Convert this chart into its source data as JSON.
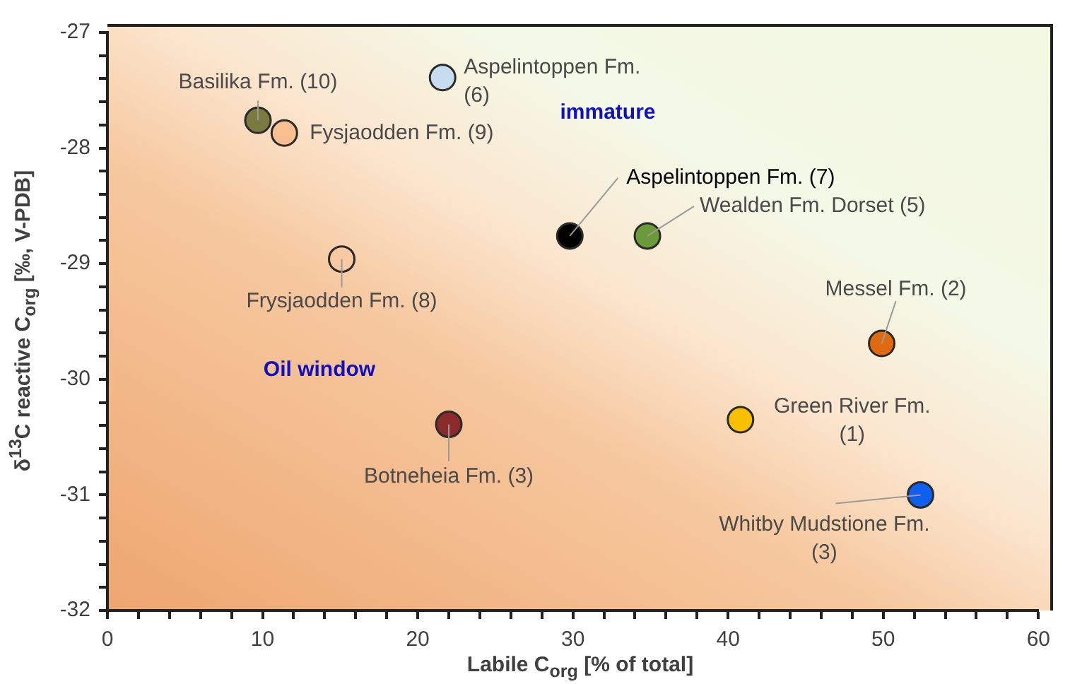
{
  "chart_data": {
    "type": "scatter",
    "xlabel": "Labile C$_{org}$ [% of total]",
    "ylabel": "δ$^{13}$C reactive C$_{org}$ [‰, V-PDB]",
    "xlim": [
      0,
      60
    ],
    "ylim": [
      -32,
      -27
    ],
    "xticks": [
      0,
      {
        "value": 2,
        "label": null
      },
      {
        "value": 4,
        "label": null
      },
      {
        "value": 6,
        "label": null
      },
      {
        "value": 8,
        "label": null
      },
      10,
      {
        "value": 12,
        "label": null
      },
      {
        "value": 14,
        "label": null
      },
      {
        "value": 16,
        "label": null
      },
      {
        "value": 18,
        "label": null
      },
      20,
      {
        "value": 22,
        "label": null
      },
      {
        "value": 24,
        "label": null
      },
      {
        "value": 26,
        "label": null
      },
      {
        "value": 28,
        "label": null
      },
      30,
      {
        "value": 32,
        "label": null
      },
      {
        "value": 34,
        "label": null
      },
      {
        "value": 36,
        "label": null
      },
      {
        "value": 38,
        "label": null
      },
      40,
      {
        "value": 42,
        "label": null
      },
      {
        "value": 44,
        "label": null
      },
      {
        "value": 46,
        "label": null
      },
      {
        "value": 48,
        "label": null
      },
      50,
      {
        "value": 52,
        "label": null
      },
      {
        "value": 54,
        "label": null
      },
      {
        "value": 56,
        "label": null
      },
      {
        "value": 58,
        "label": null
      },
      60
    ],
    "yticks": [
      -32,
      {
        "value": -31.8,
        "label": null
      },
      {
        "value": -31.6,
        "label": null
      },
      {
        "value": -31.4,
        "label": null
      },
      {
        "value": -31.2,
        "label": null
      },
      -31,
      {
        "value": -30.8,
        "label": null
      },
      {
        "value": -30.6,
        "label": null
      },
      {
        "value": -30.4,
        "label": null
      },
      {
        "value": -30.2,
        "label": null
      },
      -30,
      {
        "value": -29.8,
        "label": null
      },
      {
        "value": -29.6,
        "label": null
      },
      {
        "value": -29.4,
        "label": null
      },
      {
        "value": -29.2,
        "label": null
      },
      -29,
      {
        "value": -28.8,
        "label": null
      },
      {
        "value": -28.6,
        "label": null
      },
      {
        "value": -28.4,
        "label": null
      },
      {
        "value": -28.2,
        "label": null
      },
      -28,
      {
        "value": -27.8,
        "label": null
      },
      {
        "value": -27.6,
        "label": null
      },
      {
        "value": -27.4,
        "label": null
      },
      {
        "value": -27.2,
        "label": null
      },
      -27
    ],
    "grid": false,
    "legend": false,
    "marker": "circle",
    "series": [
      {
        "name": "Basilika Fm. (10)",
        "color": "#7a7a40",
        "x": [
          9.7
        ],
        "values": [
          -27.76
        ]
      },
      {
        "name": "Fysjaodden Fm. (9)",
        "color": "#f8c090",
        "x": [
          11.4
        ],
        "values": [
          -27.87
        ]
      },
      {
        "name": "Aspelintoppen Fm. (6)",
        "color": "#c8dcf0",
        "x": [
          21.6
        ],
        "values": [
          -27.39
        ]
      },
      {
        "name": "Frysjaodden Fm. (8)",
        "color": "#f8c8a0",
        "x": [
          15.1
        ],
        "values": [
          -28.96
        ]
      },
      {
        "name": "Botneheia Fm. (3)",
        "color": "#8b2a2a",
        "x": [
          22.0
        ],
        "values": [
          -30.39
        ]
      },
      {
        "name": "Aspelintoppen Fm. (7)",
        "color": "#000000",
        "x": [
          29.8
        ],
        "values": [
          -28.76
        ]
      },
      {
        "name": "Wealden Fm. Dorset (5)",
        "color": "#6a9a3a",
        "x": [
          34.8
        ],
        "values": [
          -28.76
        ]
      },
      {
        "name": "Messel Fm. (2)",
        "color": "#e06a10",
        "x": [
          49.9
        ],
        "values": [
          -29.69
        ]
      },
      {
        "name": "Green River Fm. (1)",
        "color": "#f8c000",
        "x": [
          40.8
        ],
        "values": [
          -30.35
        ]
      },
      {
        "name": "Whitby Mudstione Fm. (3)",
        "color": "#1060f0",
        "x": [
          52.4
        ],
        "values": [
          -31.0
        ]
      }
    ],
    "annotations": [
      "immature",
      "Oil window"
    ]
  }
}
